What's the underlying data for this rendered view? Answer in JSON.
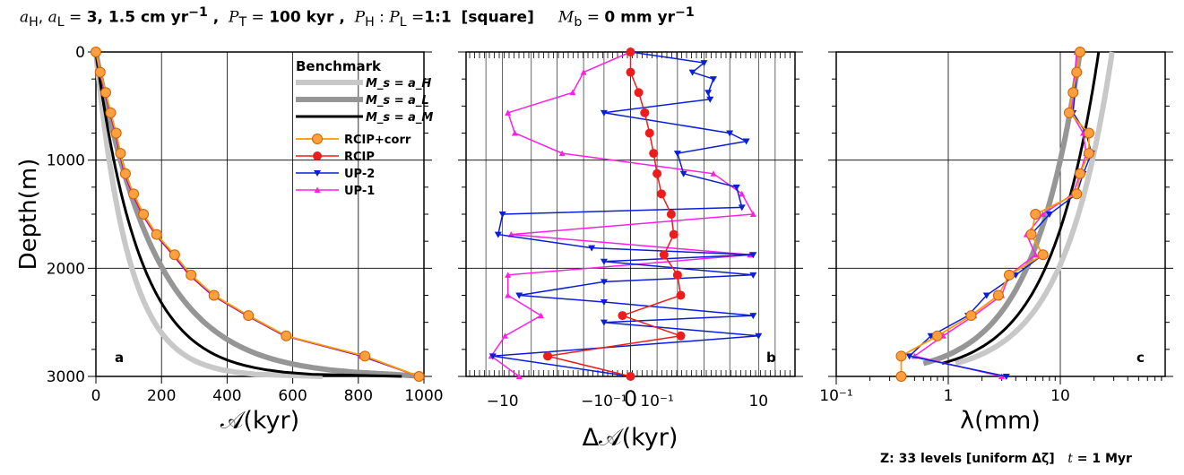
{
  "header": {
    "rates_label": "a_H, a_L = ",
    "rates_value": "3, 1.5 cm yr",
    "rates_exp": "−1",
    "period_label": "P_T = ",
    "period_value": "100 kyr",
    "ratio_label": "P_H : P_L =",
    "ratio_value": "1:1",
    "shape": "[square]",
    "melt_label": "M_b = ",
    "melt_value": "0 mm yr",
    "melt_exp": "−1"
  },
  "footer": {
    "levels": "Z: 33 levels [uniform Δζ]",
    "time_label": "t = ",
    "time_value": "1 Myr"
  },
  "colors": {
    "benchmark_aH": "#c8c8c8",
    "benchmark_aL": "#969696",
    "benchmark_aM": "#000000",
    "rcip_corr": "#ff9900",
    "rcip_corr_fill": "#ff9900",
    "rcip": "#ee1c1c",
    "up2": "#0a1fd6",
    "up1": "#ff1fe6"
  },
  "legend": {
    "title": "Benchmark",
    "bench": [
      "M_s = a_H",
      "M_s = a_L",
      "M_s = a_M"
    ],
    "series": [
      "RCIP+corr",
      "RCIP",
      "UP-2",
      "UP-1"
    ]
  },
  "ylabel": "Depth (m)",
  "chart_data": [
    {
      "panel": "a",
      "type": "line",
      "xlabel": "𝒜 (kyr)",
      "ylabel": "Depth (m)",
      "xlim": [
        0,
        1000
      ],
      "ylim": [
        3000,
        0
      ],
      "xticks": [
        "0",
        "200",
        "400",
        "600",
        "800",
        "1000"
      ],
      "yticks": [
        "0",
        "1000",
        "2000",
        "3000"
      ],
      "grid": true,
      "series": [
        {
          "name": "RCIP+corr",
          "depth": [
            0,
            187,
            375,
            562,
            750,
            937,
            1125,
            1312,
            1500,
            1687,
            1875,
            2062,
            2250,
            2437,
            2625,
            2812,
            3000
          ],
          "values": [
            0,
            13,
            30,
            45,
            62,
            75,
            90,
            115,
            145,
            185,
            240,
            290,
            360,
            465,
            580,
            820,
            985
          ]
        },
        {
          "name": "RCIP",
          "depth": [
            0,
            187,
            375,
            562,
            750,
            937,
            1125,
            1312,
            1500,
            1687,
            1875,
            2062,
            2250,
            2437,
            2625,
            2812,
            3000
          ],
          "values": [
            0,
            13,
            29,
            44,
            61,
            74,
            89,
            113,
            143,
            183,
            238,
            288,
            358,
            463,
            578,
            818,
            985
          ]
        },
        {
          "name": "UP-2",
          "depth": [
            0,
            187,
            375,
            562,
            750,
            937,
            1125,
            1312,
            1500,
            1687,
            1875,
            2062,
            2250,
            2437,
            2625,
            2812,
            3000
          ],
          "values": [
            0,
            12,
            28,
            43,
            60,
            73,
            88,
            112,
            142,
            182,
            236,
            286,
            356,
            461,
            576,
            812,
            985
          ]
        },
        {
          "name": "UP-1",
          "depth": [
            0,
            187,
            375,
            562,
            750,
            937,
            1125,
            1312,
            1500,
            1687,
            1875,
            2062,
            2250,
            2437,
            2625,
            2812,
            3000
          ],
          "values": [
            0,
            11,
            27,
            42,
            58,
            72,
            86,
            110,
            140,
            180,
            234,
            284,
            354,
            459,
            574,
            808,
            985
          ]
        }
      ]
    },
    {
      "panel": "b",
      "type": "line",
      "xlabel": "Δ𝒜 (kyr)",
      "xscale": "symlog",
      "xticks": [
        "−10",
        "−10⁻¹",
        "0",
        "10⁻¹",
        "10"
      ],
      "yticks": [
        "0",
        "1000",
        "2000",
        "3000"
      ],
      "ylim": [
        3000,
        0
      ],
      "grid": true,
      "series": [
        {
          "name": "RCIP",
          "depth": [
            0,
            187,
            375,
            562,
            750,
            937,
            1125,
            1312,
            1500,
            1687,
            1875,
            2062,
            2250,
            2437,
            2625,
            2812,
            3000
          ],
          "values": [
            0,
            0,
            0.02,
            0.04,
            0.06,
            0.08,
            0.1,
            0.13,
            0.22,
            0.25,
            0.15,
            0.3,
            0.35,
            -0.02,
            0.35,
            -1.5,
            0
          ]
        },
        {
          "name": "UP-2",
          "depth": [
            0,
            100,
            187,
            250,
            375,
            437,
            562,
            750,
            825,
            937,
            1125,
            1250,
            1437,
            1500,
            1687,
            1812,
            1875,
            1937,
            2062,
            2125,
            2250,
            2312,
            2437,
            2500,
            2625,
            2812,
            3000
          ],
          "values": [
            0,
            1,
            0.6,
            1.5,
            1.2,
            1.3,
            -0.1,
            3,
            6,
            0.3,
            0.4,
            4,
            5,
            -10,
            -12,
            -0.2,
            8,
            -0.1,
            8,
            -0.1,
            -5,
            -0.1,
            8,
            -0.1,
            10,
            -15,
            0
          ]
        },
        {
          "name": "UP-1",
          "depth": [
            0,
            187,
            375,
            562,
            750,
            937,
            1125,
            1312,
            1500,
            1687,
            1875,
            2062,
            2250,
            2437,
            2625,
            2812,
            3000
          ],
          "values": [
            0,
            -0.3,
            -0.5,
            -8,
            -6,
            -0.8,
            1.5,
            5,
            8,
            -7,
            7,
            -8,
            -8,
            -2,
            -9,
            -16,
            -5
          ]
        }
      ]
    },
    {
      "panel": "c",
      "type": "line",
      "xlabel": "λ (mm)",
      "xscale": "log",
      "xticks": [
        "10⁻¹",
        "1",
        "10"
      ],
      "ylim": [
        3000,
        0
      ],
      "grid": true,
      "series": [
        {
          "name": "RCIP+corr",
          "depth": [
            0,
            187,
            375,
            562,
            750,
            937,
            1125,
            1312,
            1500,
            1687,
            1875,
            2062,
            2250,
            2437,
            2625,
            2812,
            3000
          ],
          "values": [
            15,
            14,
            13,
            12,
            18,
            18,
            15,
            14,
            6,
            5.5,
            7,
            3.5,
            2.8,
            1.6,
            0.8,
            0.38,
            0.38
          ]
        },
        {
          "name": "UP-2",
          "depth": [
            0,
            187,
            375,
            562,
            750,
            937,
            1125,
            1312,
            1500,
            1687,
            1875,
            2062,
            2250,
            2437,
            2625,
            2812,
            3000
          ],
          "values": [
            15,
            14,
            13.5,
            13,
            17,
            19,
            16,
            14,
            8,
            5.5,
            7,
            4,
            2.2,
            1.5,
            0.7,
            0.45,
            3.3
          ]
        },
        {
          "name": "UP-1",
          "depth": [
            0,
            187,
            375,
            562,
            750,
            937,
            1125,
            1312,
            1500,
            1687,
            1875,
            2062,
            2250,
            2437,
            2625,
            2812,
            3000
          ],
          "values": [
            14,
            13.5,
            13,
            12.5,
            16,
            17,
            15,
            13,
            7,
            5,
            6,
            3.5,
            3,
            1.7,
            0.9,
            0.5,
            3
          ]
        }
      ]
    }
  ]
}
